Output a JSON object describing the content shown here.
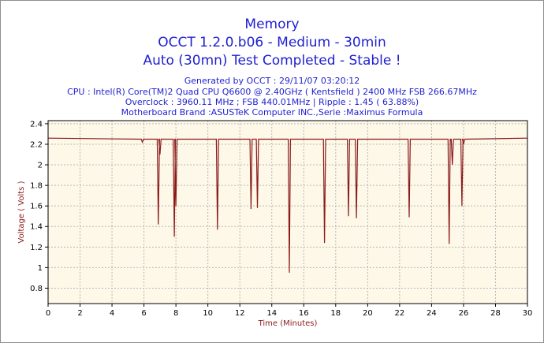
{
  "chart_data": {
    "type": "line",
    "title": "Memory",
    "subtitle": "OCCT 1.2.0.b06 - Medium - 30min",
    "status": "Auto (30mn) Test Completed - Stable !",
    "info": [
      "Generated by OCCT : 29/11/07 03:20:12",
      "CPU : Intel(R) Core(TM)2 Quad CPU Q6600 @ 2.40GHz ( Kentsfield ) 2400 MHz FSB 266.67MHz",
      "Overclock : 3960.11 MHz ; FSB 440.01MHz | Ripple : 1.45 ( 63.88%)",
      "Motherboard Brand :ASUSTeK Computer INC.,Serie :Maximus Formula"
    ],
    "xlabel": "Time (Minutes)",
    "ylabel": "Voltage ( Volts )",
    "xlim": [
      0,
      30
    ],
    "ylim": [
      0.65,
      2.43
    ],
    "xticks": [
      0,
      2,
      4,
      6,
      8,
      10,
      12,
      14,
      16,
      18,
      20,
      22,
      24,
      26,
      28,
      30
    ],
    "yticks": [
      0.8,
      1,
      1.2,
      1.4,
      1.6,
      1.8,
      2,
      2.2,
      2.4
    ],
    "grid": true,
    "line_color": "#8b1a1a",
    "plot_background": "#fdf8e8",
    "baseline": 2.26,
    "series": [
      {
        "dips": [
          {
            "x": 5.9,
            "y": 2.22
          },
          {
            "x": 6.9,
            "y": 1.42
          },
          {
            "x": 7.0,
            "y": 2.1
          },
          {
            "x": 7.9,
            "y": 1.3
          },
          {
            "x": 8.0,
            "y": 1.6
          },
          {
            "x": 10.6,
            "y": 1.37
          },
          {
            "x": 12.7,
            "y": 1.57
          },
          {
            "x": 13.1,
            "y": 1.58
          },
          {
            "x": 15.1,
            "y": 0.95
          },
          {
            "x": 17.3,
            "y": 1.24
          },
          {
            "x": 18.8,
            "y": 1.5
          },
          {
            "x": 19.3,
            "y": 1.48
          },
          {
            "x": 22.6,
            "y": 1.49
          },
          {
            "x": 25.1,
            "y": 1.23
          },
          {
            "x": 25.3,
            "y": 2.0
          },
          {
            "x": 25.9,
            "y": 1.6
          },
          {
            "x": 26.0,
            "y": 2.2
          }
        ]
      }
    ]
  }
}
